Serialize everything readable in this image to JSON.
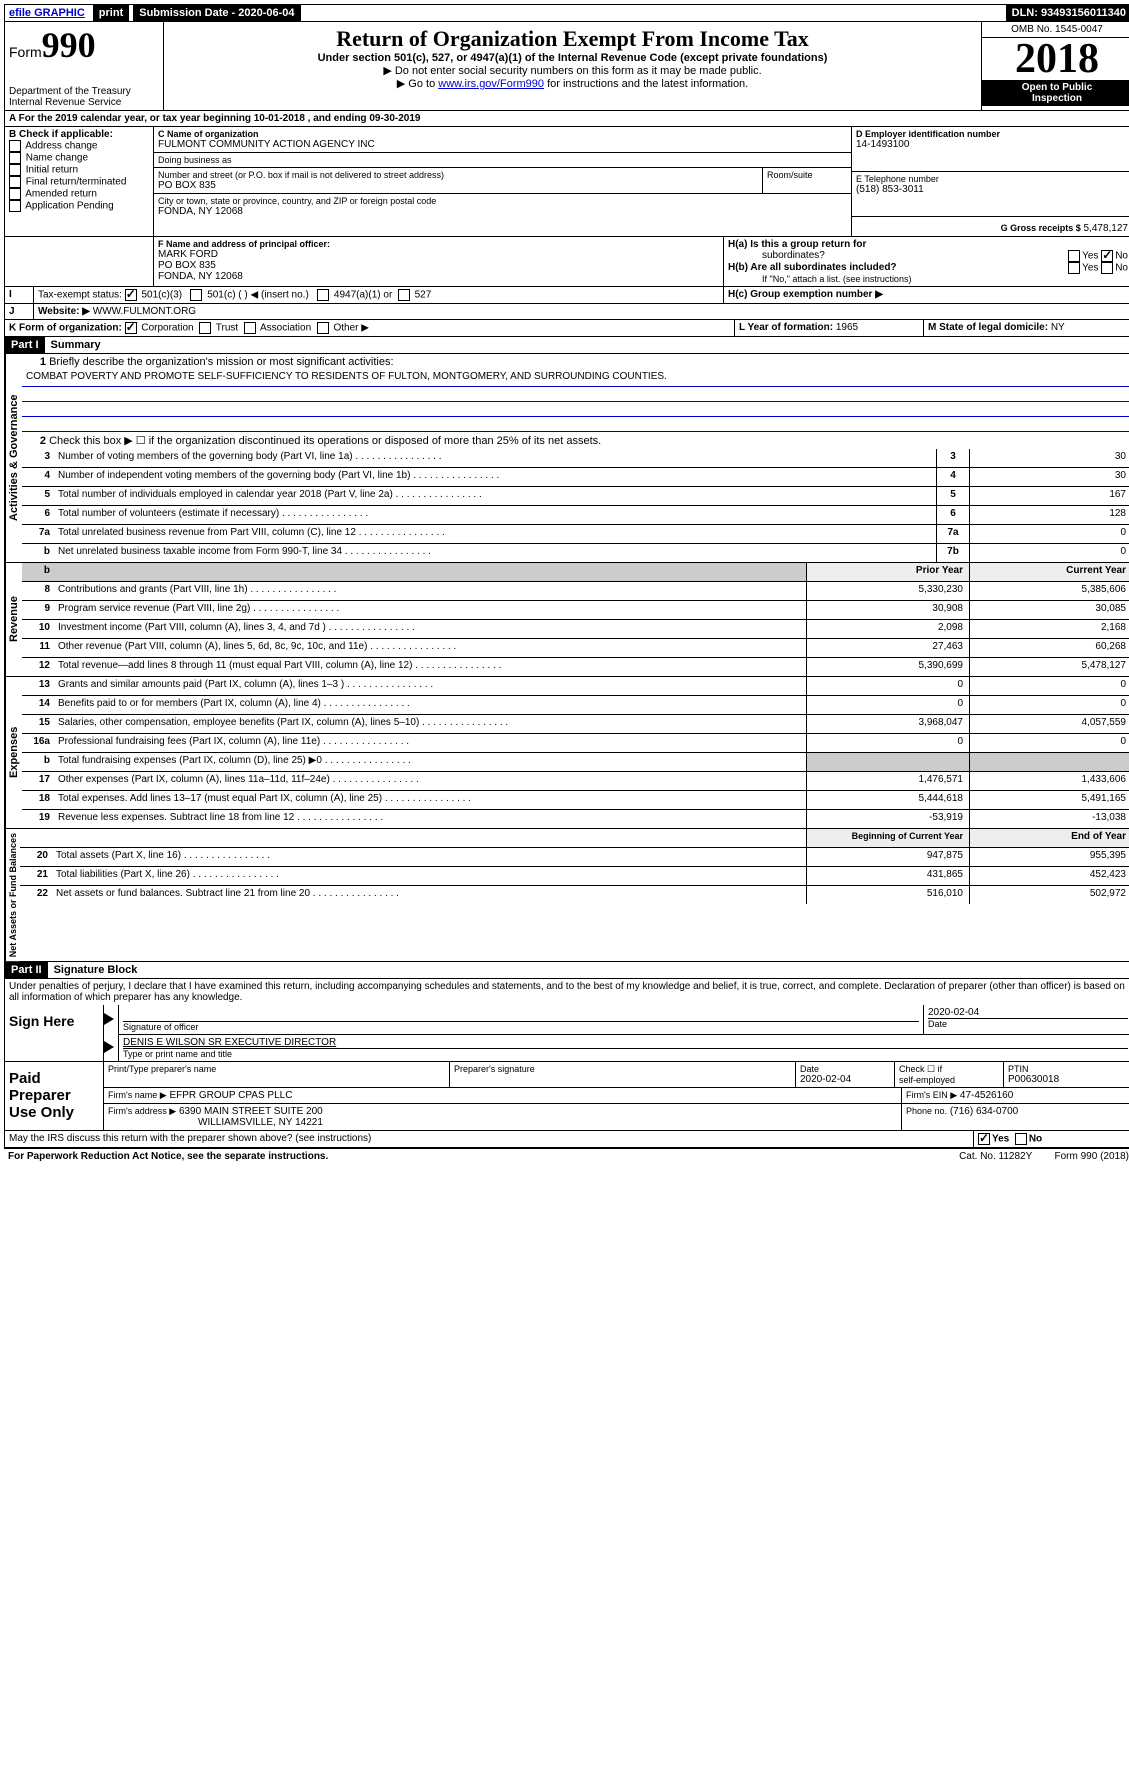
{
  "topbar": {
    "efile": "efile GRAPHIC",
    "print": "print",
    "sub_label": "Submission Date - 2020-06-04",
    "dln": "DLN: 93493156011340"
  },
  "header": {
    "form_label": "Form",
    "form_num": "990",
    "dept": "Department of the Treasury",
    "irs": "Internal Revenue Service",
    "title": "Return of Organization Exempt From Income Tax",
    "sub1": "Under section 501(c), 527, or 4947(a)(1) of the Internal Revenue Code (except private foundations)",
    "sub2": "▶ Do not enter social security numbers on this form as it may be made public.",
    "sub3_pre": "▶ Go to ",
    "sub3_link": "www.irs.gov/Form990",
    "sub3_post": " for instructions and the latest information.",
    "omb": "OMB No. 1545-0047",
    "year": "2018",
    "open1": "Open to Public",
    "open2": "Inspection"
  },
  "lineA": "A For the 2019 calendar year, or tax year beginning 10-01-2018   , and ending 09-30-2019",
  "boxB": {
    "hdr": "B Check if applicable:",
    "opts": [
      "Address change",
      "Name change",
      "Initial return",
      "Final return/terminated",
      "Amended return",
      "Application Pending"
    ]
  },
  "boxC": {
    "name_lbl": "C Name of organization",
    "name": "FULMONT COMMUNITY ACTION AGENCY INC",
    "dba_lbl": "Doing business as",
    "dba": "",
    "addr_lbl": "Number and street (or P.O. box if mail is not delivered to street address)",
    "room_lbl": "Room/suite",
    "addr": "PO BOX 835",
    "city_lbl": "City or town, state or province, country, and ZIP or foreign postal code",
    "city": "FONDA, NY  12068"
  },
  "boxD": {
    "lbl": "D Employer identification number",
    "val": "14-1493100"
  },
  "boxE": {
    "lbl": "E Telephone number",
    "val": "(518) 853-3011"
  },
  "boxG": {
    "lbl": "G Gross receipts $",
    "val": "5,478,127"
  },
  "boxF": {
    "lbl": "F Name and address of principal officer:",
    "name": "MARK FORD",
    "addr1": "PO BOX 835",
    "addr2": "FONDA, NY  12068"
  },
  "boxH": {
    "a_lbl": "H(a)  Is this a group return for",
    "a_lbl2": "subordinates?",
    "b_lbl": "H(b)  Are all subordinates included?",
    "note": "If \"No,\" attach a list. (see instructions)",
    "c_lbl": "H(c)  Group exemption number ▶"
  },
  "boxI": {
    "lbl": "Tax-exempt status:",
    "o1": "501(c)(3)",
    "o2": "501(c) (  ) ◀ (insert no.)",
    "o3": "4947(a)(1) or",
    "o4": "527"
  },
  "boxJ": {
    "lbl": "Website: ▶",
    "val": "WWW.FULMONT.ORG"
  },
  "boxK": {
    "lbl": "K Form of organization:",
    "o1": "Corporation",
    "o2": "Trust",
    "o3": "Association",
    "o4": "Other ▶"
  },
  "boxL": {
    "lbl": "L Year of formation:",
    "val": "1965"
  },
  "boxM": {
    "lbl": "M State of legal domicile:",
    "val": "NY"
  },
  "yes": "Yes",
  "no": "No",
  "partI": {
    "hdr": "Part I",
    "title": "Summary"
  },
  "summary": {
    "l1_lbl": "Briefly describe the organization's mission or most significant activities:",
    "l1_val": "COMBAT POVERTY AND PROMOTE SELF-SUFFICIENCY TO RESIDENTS OF FULTON, MONTGOMERY, AND SURROUNDING COUNTIES.",
    "l2": "Check this box ▶ ☐  if the organization discontinued its operations or disposed of more than 25% of its net assets.",
    "lines_gov": [
      {
        "n": "3",
        "t": "Number of voting members of the governing body (Part VI, line 1a)",
        "b": "3",
        "v": "30"
      },
      {
        "n": "4",
        "t": "Number of independent voting members of the governing body (Part VI, line 1b)",
        "b": "4",
        "v": "30"
      },
      {
        "n": "5",
        "t": "Total number of individuals employed in calendar year 2018 (Part V, line 2a)",
        "b": "5",
        "v": "167"
      },
      {
        "n": "6",
        "t": "Total number of volunteers (estimate if necessary)",
        "b": "6",
        "v": "128"
      },
      {
        "n": "7a",
        "t": "Total unrelated business revenue from Part VIII, column (C), line 12",
        "b": "7a",
        "v": "0"
      },
      {
        "n": "b",
        "t": "Net unrelated business taxable income from Form 990-T, line 34",
        "b": "7b",
        "v": "0"
      }
    ],
    "prior_hdr": "Prior Year",
    "curr_hdr": "Current Year",
    "lines_rev": [
      {
        "n": "8",
        "t": "Contributions and grants (Part VIII, line 1h)",
        "p": "5,330,230",
        "c": "5,385,606"
      },
      {
        "n": "9",
        "t": "Program service revenue (Part VIII, line 2g)",
        "p": "30,908",
        "c": "30,085"
      },
      {
        "n": "10",
        "t": "Investment income (Part VIII, column (A), lines 3, 4, and 7d )",
        "p": "2,098",
        "c": "2,168"
      },
      {
        "n": "11",
        "t": "Other revenue (Part VIII, column (A), lines 5, 6d, 8c, 9c, 10c, and 11e)",
        "p": "27,463",
        "c": "60,268"
      },
      {
        "n": "12",
        "t": "Total revenue—add lines 8 through 11 (must equal Part VIII, column (A), line 12)",
        "p": "5,390,699",
        "c": "5,478,127"
      }
    ],
    "lines_exp": [
      {
        "n": "13",
        "t": "Grants and similar amounts paid (Part IX, column (A), lines 1–3 )",
        "p": "0",
        "c": "0"
      },
      {
        "n": "14",
        "t": "Benefits paid to or for members (Part IX, column (A), line 4)",
        "p": "0",
        "c": "0"
      },
      {
        "n": "15",
        "t": "Salaries, other compensation, employee benefits (Part IX, column (A), lines 5–10)",
        "p": "3,968,047",
        "c": "4,057,559"
      },
      {
        "n": "16a",
        "t": "Professional fundraising fees (Part IX, column (A), line 11e)",
        "p": "0",
        "c": "0"
      },
      {
        "n": "b",
        "t": "Total fundraising expenses (Part IX, column (D), line 25) ▶0",
        "p": "",
        "c": "",
        "gray": true
      },
      {
        "n": "17",
        "t": "Other expenses (Part IX, column (A), lines 11a–11d, 11f–24e)",
        "p": "1,476,571",
        "c": "1,433,606"
      },
      {
        "n": "18",
        "t": "Total expenses. Add lines 13–17 (must equal Part IX, column (A), line 25)",
        "p": "5,444,618",
        "c": "5,491,165"
      },
      {
        "n": "19",
        "t": "Revenue less expenses. Subtract line 18 from line 12",
        "p": "-53,919",
        "c": "-13,038"
      }
    ],
    "beg_hdr": "Beginning of Current Year",
    "end_hdr": "End of Year",
    "lines_net": [
      {
        "n": "20",
        "t": "Total assets (Part X, line 16)",
        "p": "947,875",
        "c": "955,395"
      },
      {
        "n": "21",
        "t": "Total liabilities (Part X, line 26)",
        "p": "431,865",
        "c": "452,423"
      },
      {
        "n": "22",
        "t": "Net assets or fund balances. Subtract line 21 from line 20",
        "p": "516,010",
        "c": "502,972"
      }
    ]
  },
  "side": {
    "gov": "Activities & Governance",
    "rev": "Revenue",
    "exp": "Expenses",
    "net": "Net Assets or Fund Balances"
  },
  "partII": {
    "hdr": "Part II",
    "title": "Signature Block"
  },
  "perjury": "Under penalties of perjury, I declare that I have examined this return, including accompanying schedules and statements, and to the best of my knowledge and belief, it is true, correct, and complete. Declaration of preparer (other than officer) is based on all information of which preparer has any knowledge.",
  "sign": {
    "here": "Sign Here",
    "sig_lbl": "Signature of officer",
    "date": "2020-02-04",
    "date_lbl": "Date",
    "name": "DENIS E WILSON SR  EXECUTIVE DIRECTOR",
    "name_lbl": "Type or print name and title"
  },
  "paid": {
    "hdr": "Paid Preparer Use Only",
    "c1": "Print/Type preparer's name",
    "c2": "Preparer's signature",
    "c3": "Date",
    "c3v": "2020-02-04",
    "c4a": "Check ☐ if",
    "c4b": "self-employed",
    "c5": "PTIN",
    "c5v": "P00630018",
    "firm_lbl": "Firm's name    ▶",
    "firm": "EFPR GROUP CPAS PLLC",
    "ein_lbl": "Firm's EIN ▶",
    "ein": "47-4526160",
    "addr_lbl": "Firm's address ▶",
    "addr1": "6390 MAIN STREET SUITE 200",
    "addr2": "WILLIAMSVILLE, NY  14221",
    "phone_lbl": "Phone no.",
    "phone": "(716) 634-0700"
  },
  "discuss": "May the IRS discuss this return with the preparer shown above? (see instructions)",
  "footer": {
    "pra": "For Paperwork Reduction Act Notice, see the separate instructions.",
    "cat": "Cat. No. 11282Y",
    "form": "Form 990 (2018)"
  }
}
